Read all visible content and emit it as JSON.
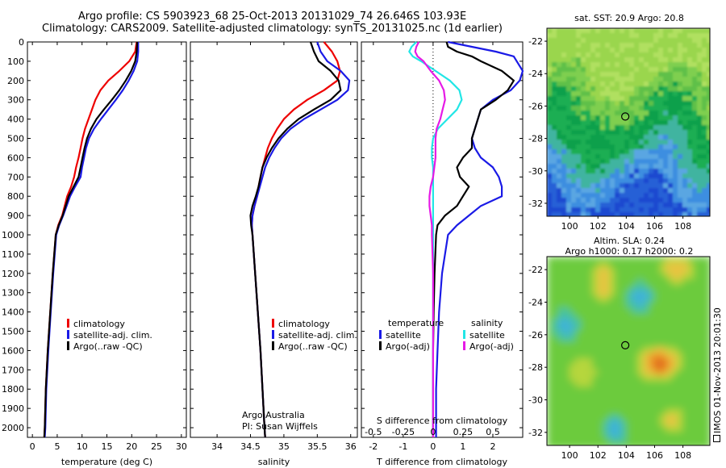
{
  "header": {
    "line1": "Argo profile: CS 5903923_68 25-Oct-2013 20131029_74 26.646S 103.93E",
    "line2": "Climatology: CARS2009. Satellite-adjusted climatology: synTS_20131025.nc (1d earlier)"
  },
  "colors": {
    "climatology": "#ee0000",
    "satellite": "#1a1ae6",
    "argo": "#000000",
    "sat_salinity": "#22e6e6",
    "argo_adj_salinity": "#e61ae6"
  },
  "chart_data": [
    {
      "type": "line",
      "name": "temperature-profile",
      "xlabel": "temperature (deg C)",
      "ylabel": "",
      "xlim": [
        -1,
        31
      ],
      "ylim": [
        2050,
        0
      ],
      "xticks": [
        0,
        5,
        10,
        15,
        20,
        25,
        30
      ],
      "yticks": [
        0,
        100,
        200,
        300,
        400,
        500,
        600,
        700,
        800,
        900,
        1000,
        1100,
        1200,
        1300,
        1400,
        1500,
        1600,
        1700,
        1800,
        1900,
        2000
      ],
      "depth": [
        0,
        50,
        100,
        150,
        200,
        250,
        300,
        350,
        400,
        450,
        500,
        550,
        600,
        650,
        700,
        750,
        800,
        850,
        900,
        950,
        1000,
        1200,
        1400,
        1600,
        1800,
        2000,
        2050
      ],
      "series": [
        {
          "name": "climatology",
          "color": "#ee0000",
          "values": [
            21,
            20.7,
            19.5,
            17.5,
            15.3,
            13.7,
            12.7,
            12,
            11.3,
            10.6,
            10.1,
            9.7,
            9.3,
            8.8,
            8.4,
            7.8,
            7,
            6.5,
            6,
            5.2,
            4.7,
            4.1,
            3.6,
            3.1,
            2.7,
            2.5,
            2.4
          ]
        },
        {
          "name": "satellite-adj. clim.",
          "color": "#1a1ae6",
          "values": [
            21.3,
            21.3,
            21.1,
            20.4,
            19.4,
            18.2,
            16.8,
            15.3,
            13.8,
            12.4,
            11.4,
            10.8,
            10.4,
            10,
            9.7,
            8.6,
            7.6,
            6.9,
            6.2,
            5.4,
            4.8,
            4.2,
            3.7,
            3.2,
            2.8,
            2.6,
            2.5
          ]
        },
        {
          "name": "Argo(..raw -QC)",
          "color": "#000000",
          "values": [
            21.1,
            21,
            20.7,
            19.9,
            18.8,
            17.5,
            16,
            14.4,
            12.9,
            11.8,
            11,
            10.5,
            10.1,
            9.7,
            9.3,
            8.3,
            7.3,
            6.7,
            6.1,
            5.3,
            4.7,
            4.1,
            3.6,
            3.1,
            2.7,
            2.5,
            2.4
          ]
        }
      ],
      "legend": {
        "placement": "lower-middle",
        "entries": [
          "climatology",
          "satellite-adj. clim.",
          "Argo(..raw -QC)"
        ]
      }
    },
    {
      "type": "line",
      "name": "salinity-profile",
      "xlabel": "salinity",
      "xlim": [
        33.6,
        36.1
      ],
      "ylim": [
        2050,
        0
      ],
      "xticks": [
        34,
        34.5,
        35,
        35.5,
        36
      ],
      "depth": [
        0,
        50,
        100,
        150,
        200,
        250,
        300,
        350,
        400,
        450,
        500,
        550,
        600,
        650,
        700,
        750,
        800,
        850,
        900,
        950,
        1000,
        1200,
        1400,
        1600,
        1800,
        2000,
        2050
      ],
      "series": [
        {
          "name": "climatology",
          "color": "#ee0000",
          "values": [
            35.6,
            35.72,
            35.8,
            35.84,
            35.8,
            35.6,
            35.35,
            35.15,
            35.0,
            34.9,
            34.82,
            34.76,
            34.72,
            34.68,
            34.65,
            34.62,
            34.6,
            34.56,
            34.53,
            34.52,
            34.53,
            34.57,
            34.61,
            34.65,
            34.68,
            34.71,
            34.72
          ]
        },
        {
          "name": "satellite-adj. clim.",
          "color": "#1a1ae6",
          "values": [
            35.5,
            35.55,
            35.65,
            35.85,
            35.98,
            35.96,
            35.8,
            35.55,
            35.3,
            35.1,
            34.96,
            34.86,
            34.78,
            34.72,
            34.68,
            34.64,
            34.6,
            34.56,
            34.53,
            34.52,
            34.53,
            34.57,
            34.61,
            34.65,
            34.68,
            34.71,
            34.72
          ]
        },
        {
          "name": "Argo(..raw -QC)",
          "color": "#000000",
          "values": [
            35.4,
            35.45,
            35.52,
            35.7,
            35.82,
            35.85,
            35.7,
            35.45,
            35.22,
            35.05,
            34.92,
            34.82,
            34.74,
            34.68,
            34.65,
            34.62,
            34.58,
            34.53,
            34.5,
            34.51,
            34.53,
            34.57,
            34.61,
            34.65,
            34.68,
            34.71,
            34.72
          ]
        }
      ],
      "legend": {
        "placement": "lower-middle",
        "entries": [
          "climatology",
          "satellite-adj. clim.",
          "Argo(..raw -QC)"
        ]
      },
      "annotation": [
        "Argo Australia",
        "PI: Susan Wijffels"
      ]
    },
    {
      "type": "line",
      "name": "difference-profile",
      "xlabel": "T difference from climatology",
      "secondary_xlabel": "S difference from climatology",
      "xlim": [
        -2.4,
        3.0
      ],
      "secondary_xlim": [
        -0.6,
        0.75
      ],
      "ylim": [
        2050,
        0
      ],
      "xticks": [
        -2,
        -1,
        0,
        1,
        2
      ],
      "secondary_xticks": [
        -0.5,
        -0.25,
        0,
        0.25,
        0.5
      ],
      "secondary_xticklabels": [
        "-0.5",
        "-0.25",
        "0",
        "0.25",
        "0.5"
      ],
      "zero_line": "dotted",
      "depth": [
        0,
        25,
        50,
        75,
        100,
        150,
        200,
        250,
        300,
        350,
        400,
        450,
        500,
        550,
        600,
        650,
        700,
        750,
        800,
        850,
        900,
        950,
        1000,
        1200,
        1400,
        1600,
        1800,
        2000,
        2050
      ],
      "series": [
        {
          "name": "temperature satellite",
          "color": "#1a1ae6",
          "values": [
            0.5,
            1.3,
            2.1,
            2.7,
            2.8,
            3.0,
            2.9,
            2.6,
            2.0,
            1.6,
            1.5,
            1.4,
            1.3,
            1.4,
            1.6,
            2.0,
            2.2,
            2.3,
            2.3,
            1.6,
            1.2,
            0.8,
            0.5,
            0.3,
            0.2,
            0.15,
            0.1,
            0.1,
            0.1
          ]
        },
        {
          "name": "temperature Argo(-adj)",
          "color": "#000000",
          "values": [
            0.45,
            0.5,
            0.8,
            1.3,
            1.6,
            2.3,
            2.7,
            2.5,
            2.1,
            1.6,
            1.5,
            1.4,
            1.3,
            1.3,
            1.0,
            0.8,
            0.9,
            1.2,
            1.0,
            0.8,
            0.4,
            0.15,
            0.1,
            0.05,
            0.02,
            0.0,
            0.0,
            0.0,
            0.0
          ]
        },
        {
          "name": "salinity satellite",
          "color": "#22e6e6",
          "values": [
            -0.14,
            -0.18,
            -0.2,
            -0.17,
            -0.1,
            0.02,
            0.14,
            0.22,
            0.24,
            0.2,
            0.12,
            0.04,
            0.0,
            -0.01,
            -0.01,
            0.0,
            0.0,
            0.0,
            0.0,
            0.0,
            0.0,
            0.0,
            0.0,
            0.0,
            0.0,
            0.0,
            0.0,
            0.0,
            0.0
          ]
        },
        {
          "name": "salinity Argo(-adj)",
          "color": "#e61ae6",
          "values": [
            -0.12,
            -0.14,
            -0.15,
            -0.13,
            -0.08,
            -0.02,
            0.05,
            0.09,
            0.1,
            0.08,
            0.06,
            0.03,
            0.02,
            0.02,
            0.02,
            0.01,
            0.0,
            -0.02,
            -0.03,
            -0.03,
            -0.02,
            -0.01,
            -0.01,
            0.0,
            0.0,
            0.0,
            0.0,
            0.0,
            0.0
          ]
        }
      ],
      "legend": {
        "placement": "lower-middle",
        "group_temperature": "temperature",
        "group_salinity": "salinity",
        "entries": [
          "satellite",
          "Argo(-adj)",
          "satellite",
          "Argo(-adj)"
        ]
      }
    },
    {
      "type": "heatmap",
      "name": "sst-map",
      "title": "sat. SST: 20.9 Argo: 20.8",
      "xlim": [
        98.4,
        109.9
      ],
      "ylim": [
        -32.8,
        -21.2
      ],
      "xticks": [
        100,
        102,
        104,
        106,
        108
      ],
      "yticks": [
        -22,
        -24,
        -26,
        -28,
        -30,
        -32
      ],
      "marker": {
        "lon": 103.93,
        "lat": -26.646
      }
    },
    {
      "type": "heatmap",
      "name": "sla-map",
      "title_line1": "Altim. SLA: 0.24",
      "title_line2": "Argo h1000: 0.17 h2000: 0.2",
      "xlim": [
        98.4,
        109.9
      ],
      "ylim": [
        -32.8,
        -21.2
      ],
      "xticks": [
        100,
        102,
        104,
        106,
        108
      ],
      "yticks": [
        -22,
        -24,
        -26,
        -28,
        -30,
        -32
      ],
      "marker": {
        "lon": 103.93,
        "lat": -26.646
      }
    }
  ],
  "stamp": "IMOS 01-Nov-2013 20:01:30"
}
